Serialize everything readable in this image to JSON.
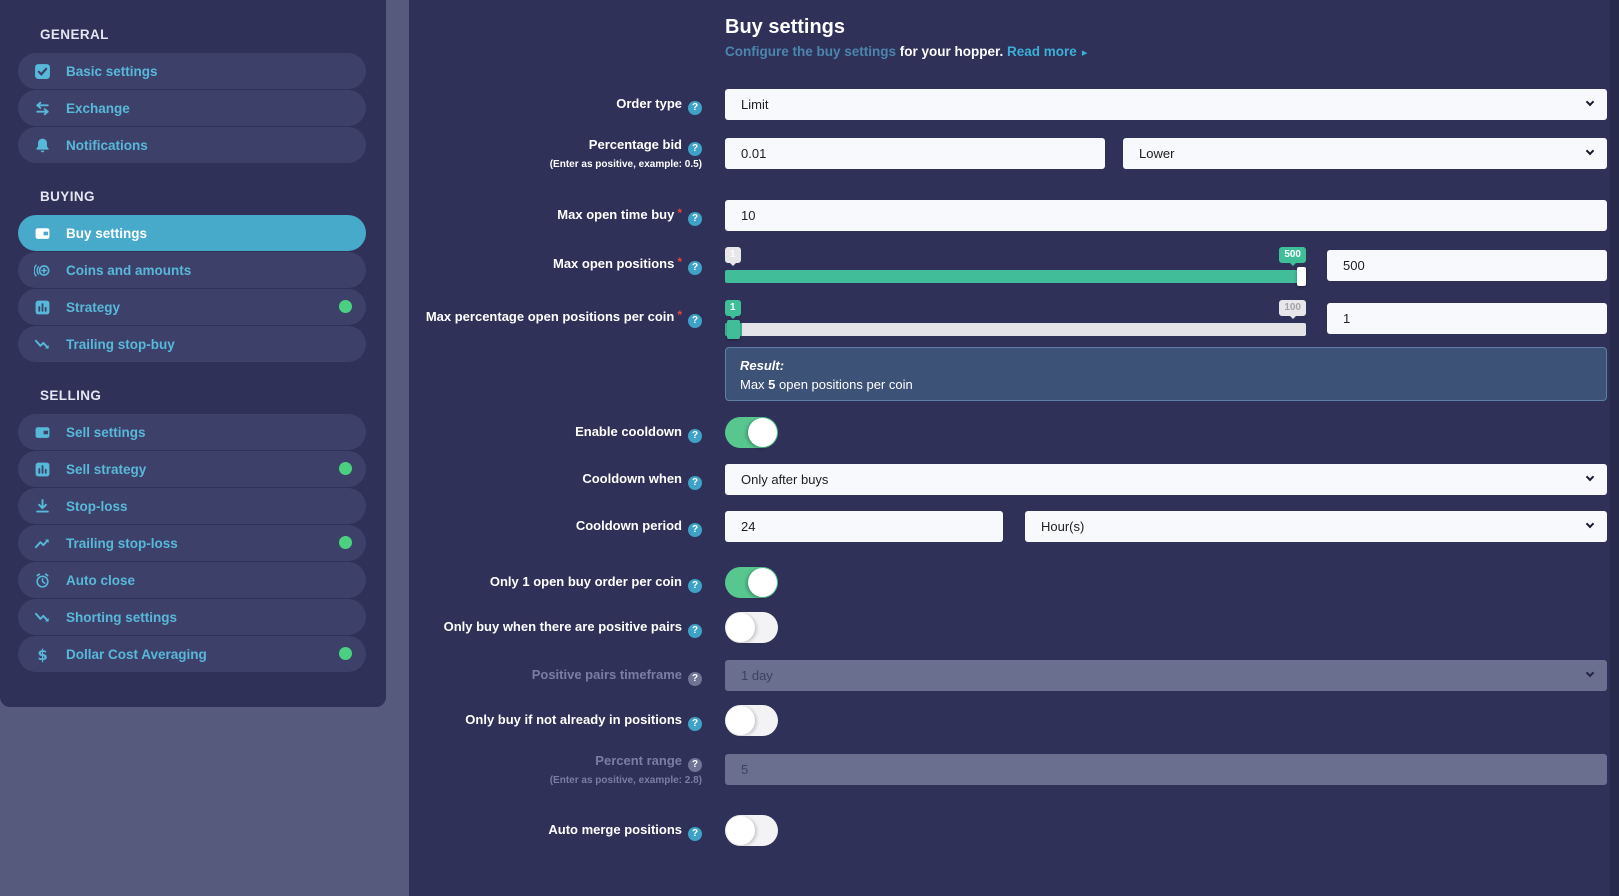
{
  "colors": {
    "page_bg": "#565a7c",
    "panel_bg": "#2f3158",
    "sidebar_pill_bg": "#3d4169",
    "active_pill_bg": "#47aacb",
    "sidebar_text": "#58b8da",
    "link_teal": "#3cafd6",
    "green_dot": "#4bd080",
    "toggle_on_green": "#57c78f",
    "slider_teal": "#42bd9a",
    "result_box_bg": "#3c5276",
    "field_bg": "#f8f9fc",
    "disabled_field_bg": "#6b6f8f",
    "required_red": "#e0483c"
  },
  "icons": {
    "help_glyph": "?"
  },
  "sidebar": {
    "sections": [
      {
        "heading": "GENERAL",
        "items": [
          {
            "label": "Basic settings",
            "icon": "check-square-icon",
            "active": false,
            "dot": false
          },
          {
            "label": "Exchange",
            "icon": "exchange-arrows-icon",
            "active": false,
            "dot": false
          },
          {
            "label": "Notifications",
            "icon": "bell-icon",
            "active": false,
            "dot": false
          }
        ]
      },
      {
        "heading": "BUYING",
        "items": [
          {
            "label": "Buy settings",
            "icon": "wallet-icon",
            "active": true,
            "dot": false
          },
          {
            "label": "Coins and amounts",
            "icon": "coins-plus-icon",
            "active": false,
            "dot": false
          },
          {
            "label": "Strategy",
            "icon": "bar-chart-icon",
            "active": false,
            "dot": true
          },
          {
            "label": "Trailing stop-buy",
            "icon": "trend-down-icon",
            "active": false,
            "dot": false
          }
        ]
      },
      {
        "heading": "SELLING",
        "items": [
          {
            "label": "Sell settings",
            "icon": "wallet-icon",
            "active": false,
            "dot": false
          },
          {
            "label": "Sell strategy",
            "icon": "bar-chart-icon",
            "active": false,
            "dot": true
          },
          {
            "label": "Stop-loss",
            "icon": "download-icon",
            "active": false,
            "dot": false
          },
          {
            "label": "Trailing stop-loss",
            "icon": "trend-up-icon",
            "active": false,
            "dot": true
          },
          {
            "label": "Auto close",
            "icon": "alarm-clock-icon",
            "active": false,
            "dot": false
          },
          {
            "label": "Shorting settings",
            "icon": "trend-down-icon",
            "active": false,
            "dot": false
          },
          {
            "label": "Dollar Cost Averaging",
            "icon": "dollar-icon",
            "active": false,
            "dot": true
          }
        ]
      }
    ]
  },
  "header": {
    "title": "Buy settings",
    "subtitle_link": "Configure the buy settings",
    "subtitle_rest": " for your hopper. ",
    "read_more": "Read more",
    "read_more_arrow": "▸"
  },
  "form": {
    "order_type": {
      "label": "Order type",
      "value": "Limit"
    },
    "percentage_bid": {
      "label": "Percentage bid",
      "note": "(Enter as positive, example: 0.5)",
      "value": "0.01",
      "unit": "Lower"
    },
    "max_open_time_buy": {
      "label": "Max open time buy",
      "required": "*",
      "value": "10"
    },
    "max_open_positions": {
      "label": "Max open positions",
      "required": "*",
      "min": "1",
      "max": "500",
      "value": "500"
    },
    "max_percentage_open_positions_per_coin": {
      "label": "Max percentage open positions per coin",
      "required": "*",
      "min": "1",
      "max": "100",
      "value": "1"
    },
    "result": {
      "heading": "Result:",
      "line_before": "Max ",
      "value": "5",
      "line_after": " open positions per coin"
    },
    "enable_cooldown": {
      "label": "Enable cooldown",
      "state": "on"
    },
    "cooldown_when": {
      "label": "Cooldown when",
      "value": "Only after buys"
    },
    "cooldown_period": {
      "label": "Cooldown period",
      "value": "24",
      "unit": "Hour(s)"
    },
    "only_1_open_buy_order_per_coin": {
      "label": "Only 1 open buy order per coin",
      "state": "on"
    },
    "only_buy_when_positive_pairs": {
      "label": "Only buy when there are positive pairs",
      "state": "off"
    },
    "positive_pairs_timeframe": {
      "label": "Positive pairs timeframe",
      "value": "1 day",
      "disabled": true
    },
    "only_buy_if_not_already_in_positions": {
      "label": "Only buy if not already in positions",
      "state": "off"
    },
    "percent_range": {
      "label": "Percent range",
      "note": "(Enter as positive, example: 2.8)",
      "value": "5",
      "disabled": true
    },
    "auto_merge_positions": {
      "label": "Auto merge positions",
      "state": "off"
    }
  }
}
